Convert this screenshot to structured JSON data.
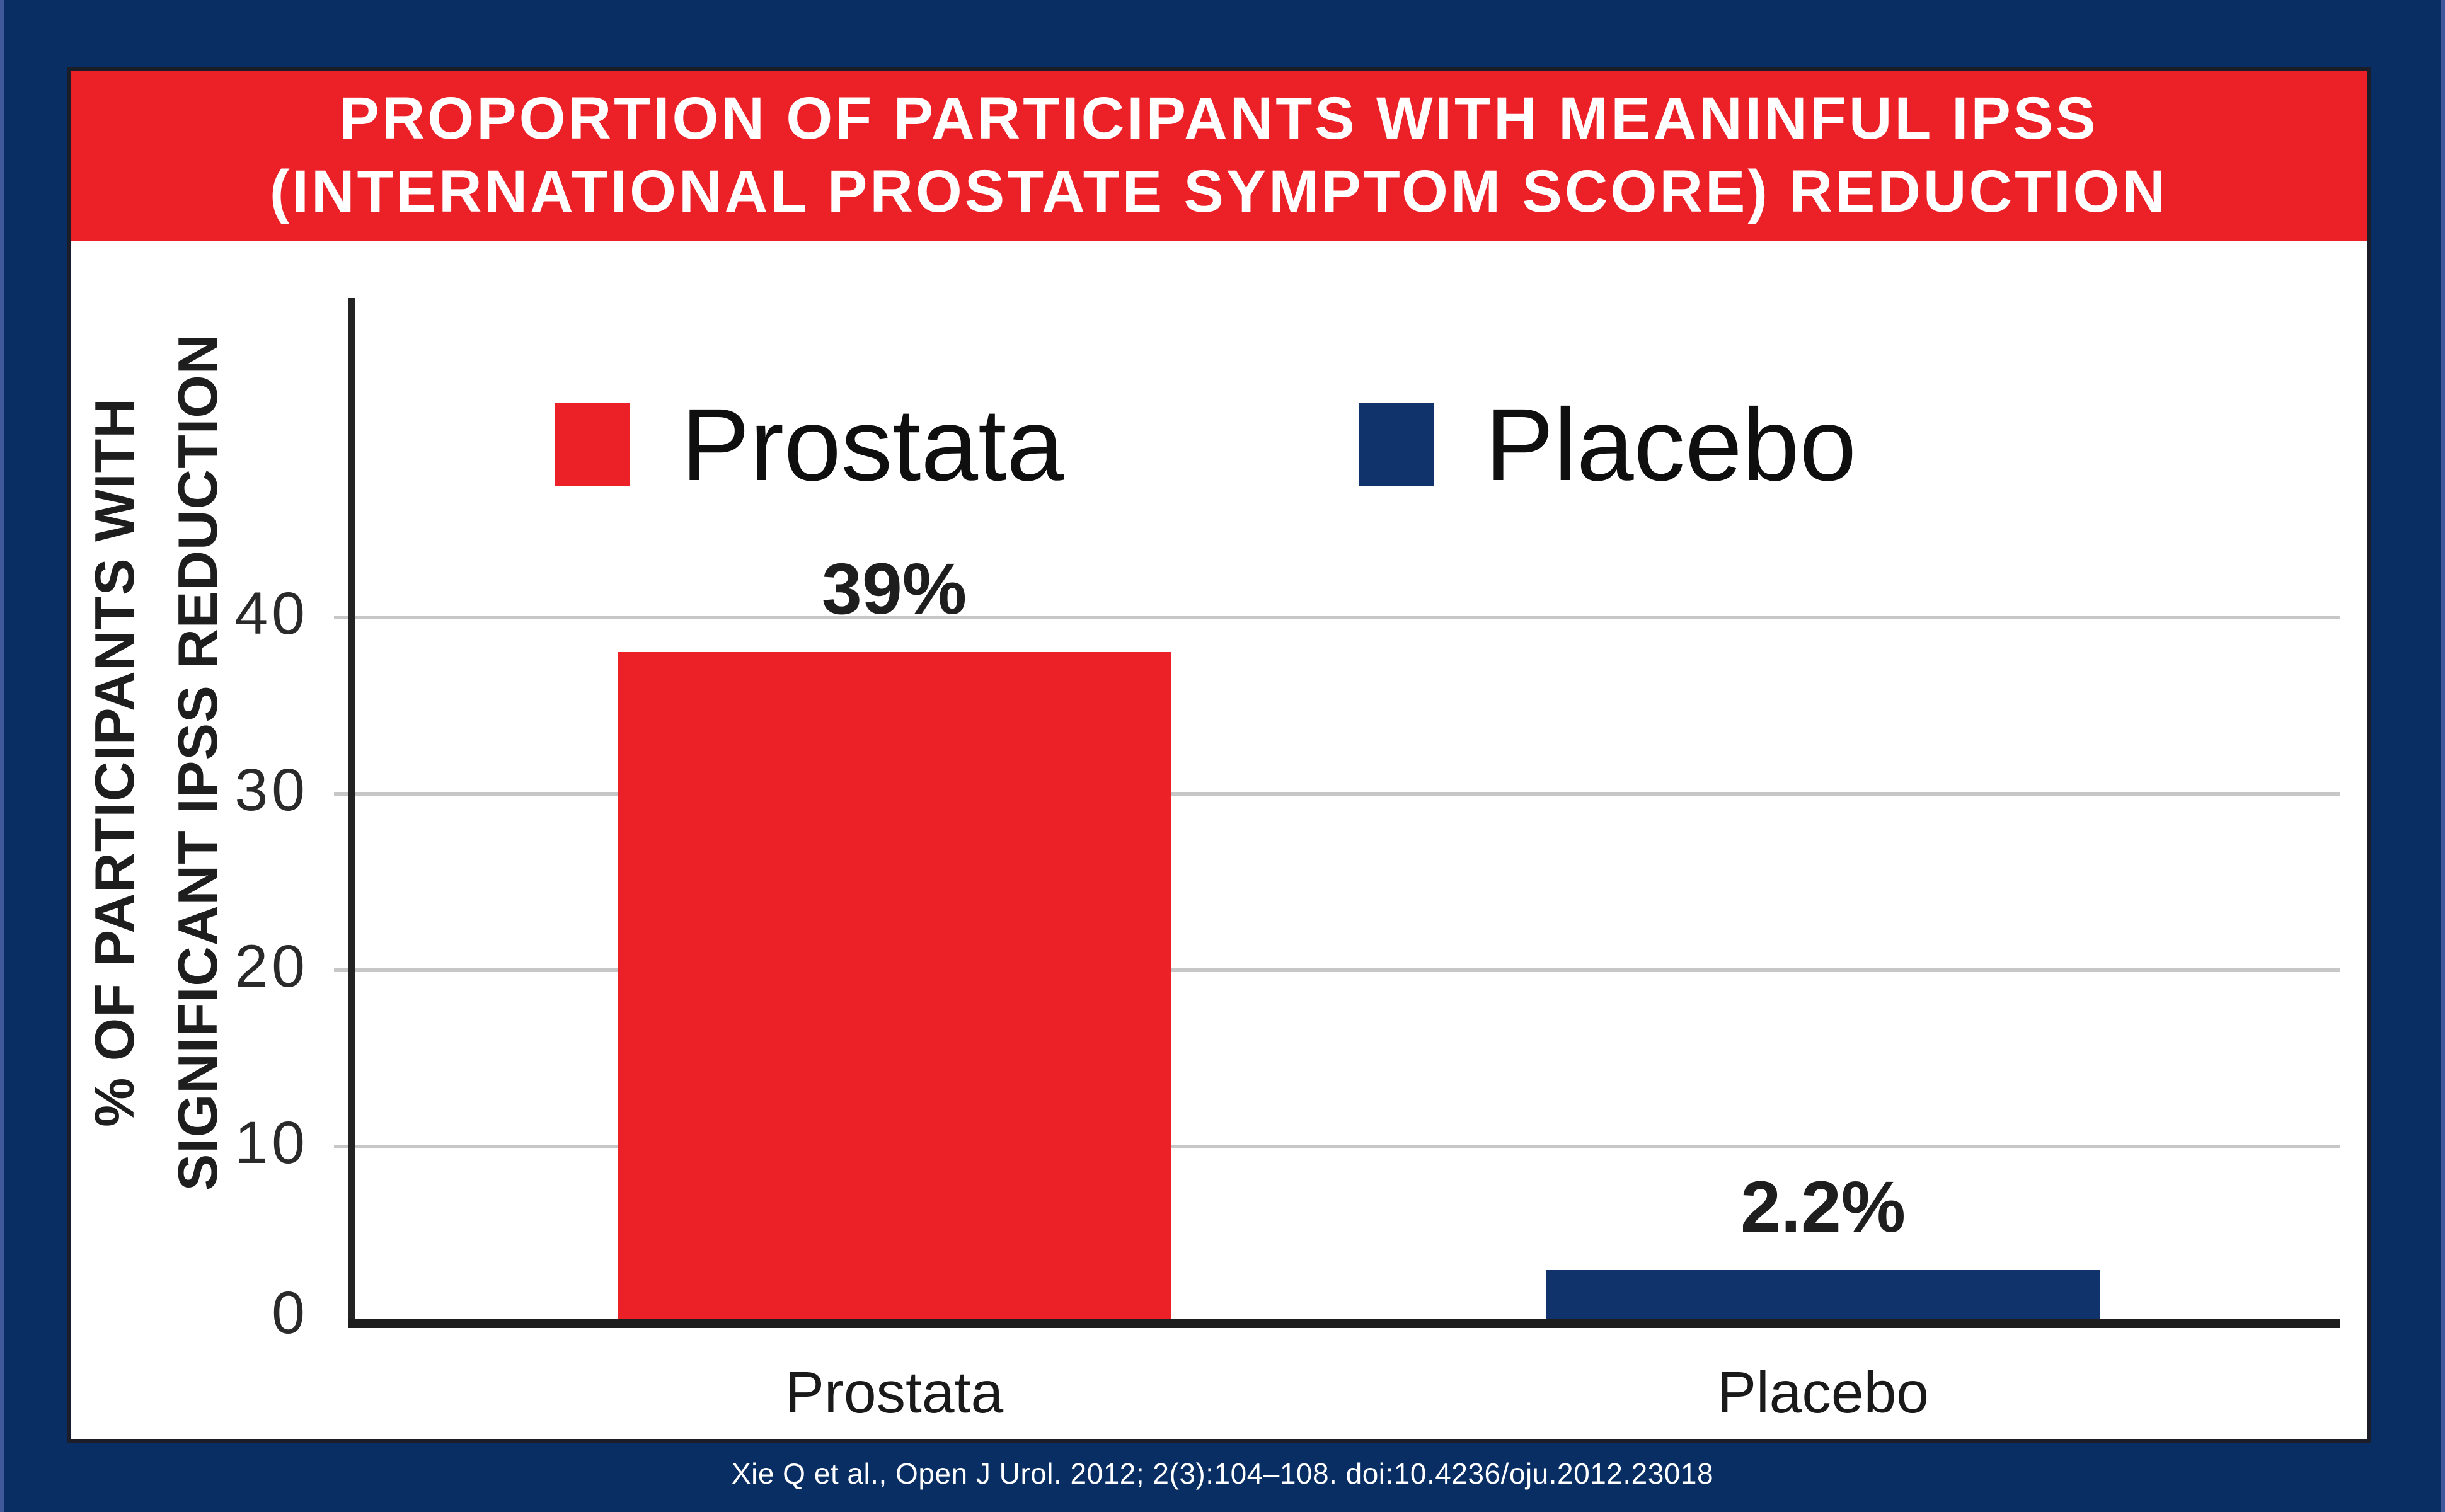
{
  "banner": {
    "title_line1": "PROPORTION OF PARTICIPANTS WITH MEANINFUL IPSS",
    "title_line2": "(INTERNATIONAL PROSTATE SYMPTOM SCORE) REDUCTION"
  },
  "chart_data": {
    "type": "bar",
    "title": "PROPORTION OF PARTICIPANTS WITH MEANINFUL IPSS (INTERNATIONAL PROSTATE SYMPTOM SCORE) REDUCTION",
    "categories": [
      "Prostata",
      "Placebo"
    ],
    "values": [
      39,
      2.2
    ],
    "value_labels": [
      "39%",
      "2.2%"
    ],
    "xlabel": "",
    "ylabel_line1": "% OF PARTICIPANTS WITH",
    "ylabel_line2": "SIGNIFICANT IPSS REDUCTION",
    "yticks": [
      40,
      30,
      20,
      10,
      0
    ],
    "ytick_labels": [
      "40",
      "30",
      "20",
      "10",
      "0"
    ],
    "ylim": [
      0,
      58
    ],
    "grid": true,
    "legend_position": "top-inside",
    "legend": [
      {
        "label": "Prostata",
        "color": "#EC2127"
      },
      {
        "label": "Placebo",
        "color": "#10336B"
      }
    ]
  },
  "footer": {
    "citation": "Xie Q et al., Open J Urol. 2012; 2(3):104–108. doi:10.4236/oju.2012.23018"
  },
  "colors": {
    "frame_navy": "#082E64",
    "panel_bg": "#FFFFFF",
    "panel_border": "#1B1E29",
    "accent_red": "#EC2127",
    "placebo_navy": "#10336B",
    "gridline_gray": "#C7C7C7",
    "axis_black": "#232323",
    "text_black": "#1E1E1E",
    "title_text": "#FFFFFF",
    "citation_text": "#FFFFFF"
  }
}
